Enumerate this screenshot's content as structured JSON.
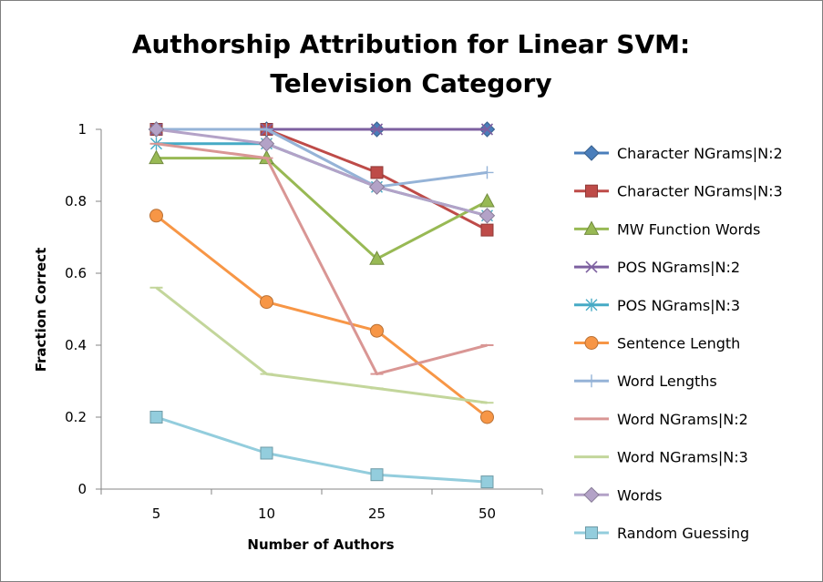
{
  "chart_data": {
    "type": "line",
    "title_lines": [
      "Authorship Attribution for Linear SVM:",
      "Television Category"
    ],
    "xlabel": "Number of Authors",
    "ylabel": "Fraction Correct",
    "categories": [
      "5",
      "10",
      "25",
      "50"
    ],
    "ylim": [
      0,
      1
    ],
    "yticks": [
      "0",
      "0.2",
      "0.4",
      "0.6",
      "0.8",
      "1"
    ],
    "ytick_values": [
      0,
      0.2,
      0.4,
      0.6,
      0.8,
      1
    ],
    "grid": false,
    "legend_position": "right",
    "series": [
      {
        "name": "Character NGrams|N:2",
        "color": "#4a7ebb",
        "marker": "diamond",
        "values": [
          1.0,
          1.0,
          1.0,
          1.0
        ]
      },
      {
        "name": "Character NGrams|N:3",
        "color": "#be4b48",
        "marker": "square",
        "values": [
          1.0,
          1.0,
          0.88,
          0.72
        ]
      },
      {
        "name": "MW Function Words",
        "color": "#98b954",
        "marker": "triangle",
        "values": [
          0.92,
          0.92,
          0.64,
          0.8
        ]
      },
      {
        "name": "POS NGrams|N:2",
        "color": "#7d60a0",
        "marker": "x",
        "values": [
          1.0,
          1.0,
          1.0,
          1.0
        ]
      },
      {
        "name": "POS NGrams|N:3",
        "color": "#46aac5",
        "marker": "star",
        "values": [
          0.96,
          0.96,
          0.84,
          0.76
        ]
      },
      {
        "name": "Sentence Length",
        "color": "#f79646",
        "marker": "circle",
        "values": [
          0.76,
          0.52,
          0.44,
          0.2
        ]
      },
      {
        "name": "Word Lengths",
        "color": "#95b3d7",
        "marker": "plus",
        "values": [
          1.0,
          1.0,
          0.84,
          0.88
        ]
      },
      {
        "name": "Word NGrams|N:2",
        "color": "#d99694",
        "marker": "dash",
        "values": [
          0.96,
          0.92,
          0.32,
          0.4
        ]
      },
      {
        "name": "Word NGrams|N:3",
        "color": "#c3d69b",
        "marker": "dash",
        "values": [
          0.56,
          0.32,
          0.28,
          0.24
        ]
      },
      {
        "name": "Words",
        "color": "#b3a2c7",
        "marker": "diamond",
        "values": [
          1.0,
          0.96,
          0.84,
          0.76
        ]
      },
      {
        "name": "Random Guessing",
        "color": "#93cddd",
        "marker": "square",
        "values": [
          0.2,
          0.1,
          0.04,
          0.02
        ]
      }
    ]
  }
}
